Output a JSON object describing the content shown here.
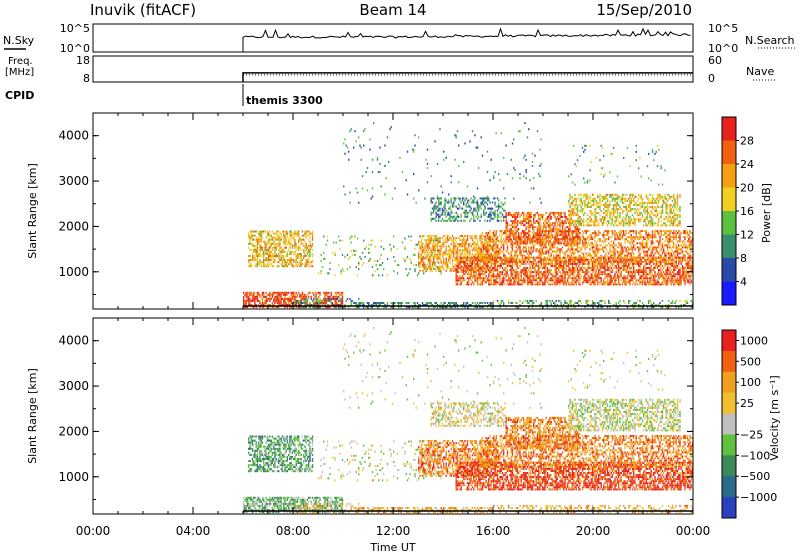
{
  "header": {
    "station": "Inuvik (fitACF)",
    "beam": "Beam 14",
    "date": "15/Sep/2010"
  },
  "nsky_panel": {
    "left_label": "N.Sky",
    "left_ticks": [
      "10^5",
      "10^0"
    ],
    "right_label": "N.Search",
    "right_ticks": [
      "10^5",
      "10^0"
    ]
  },
  "freq_panel": {
    "left_label_line1": "Freq.",
    "left_label_line2": "[MHz]",
    "left_ticks": [
      "18",
      "8"
    ],
    "right_label": "Nave",
    "right_ticks": [
      "60",
      "0"
    ]
  },
  "cpid": {
    "label": "CPID",
    "program": "themis 3300"
  },
  "colors": {
    "power_scale": [
      "#1a1aff",
      "#2a4aa8",
      "#3a8f6a",
      "#5cc040",
      "#f0d020",
      "#f5a010",
      "#f06010",
      "#e82020"
    ],
    "velocity_scale": [
      "#2a40c0",
      "#2a6a8a",
      "#3a8a5a",
      "#60c040",
      "#c0c0c0",
      "#f0c030",
      "#f0a020",
      "#f06010",
      "#e82020"
    ]
  },
  "chart_data": [
    {
      "type": "heatmap",
      "panel": "power",
      "ylabel": "Slant Range [km]",
      "yticks": [
        "1000",
        "2000",
        "3000",
        "4000"
      ],
      "ylim": [
        180,
        4500
      ],
      "xlim_hours": [
        0,
        24
      ],
      "colorbar_label": "Power [dB]",
      "colorbar_ticks": [
        "4",
        "8",
        "12",
        "16",
        "20",
        "24",
        "28"
      ],
      "colorbar_range": [
        0,
        32
      ]
    },
    {
      "type": "heatmap",
      "panel": "velocity",
      "ylabel": "Slant Range [km]",
      "yticks": [
        "1000",
        "2000",
        "3000",
        "4000"
      ],
      "ylim": [
        180,
        4500
      ],
      "xlim_hours": [
        0,
        24
      ],
      "colorbar_label": "Velocity [m s⁻¹]",
      "colorbar_ticks": [
        "1000",
        "500",
        "100",
        "25",
        "−25",
        "−100",
        "−500",
        "−1000"
      ]
    },
    {
      "type": "line",
      "panel": "frequency",
      "x_hours_start": 6,
      "ylim": [
        8,
        18
      ],
      "y_mhz_approx": 11.5
    }
  ],
  "x_axis": {
    "ticks": [
      "00:00",
      "04:00",
      "08:00",
      "12:00",
      "16:00",
      "20:00",
      "00:00"
    ],
    "label": "Time UT"
  }
}
